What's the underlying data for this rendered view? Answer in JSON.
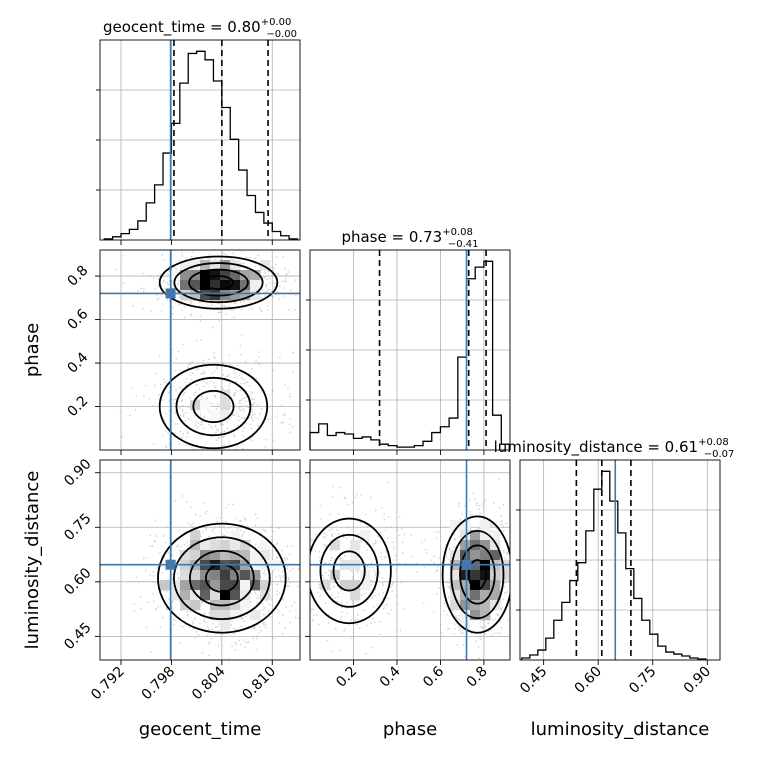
{
  "colors": {
    "truth": "#4477aa",
    "histogram": "#000000",
    "grid": "#b0b0b0"
  },
  "chart_data": {
    "type": "corner",
    "parameters": [
      {
        "name": "geocent_time",
        "xlabel": "geocent_time",
        "title_main": "geocent_time = 0.80",
        "title_plus": "+0.00",
        "title_minus": "−0.00",
        "range": [
          0.7895,
          0.8133
        ],
        "ticks": [
          0.792,
          0.798,
          0.804,
          0.81
        ],
        "tick_labels": [
          "0.792",
          "0.798",
          "0.804",
          "0.810"
        ],
        "quantiles": [
          0.7983,
          0.804,
          0.8095
        ],
        "truth": 0.7979,
        "hist": {
          "edges": [
            0.79,
            0.791,
            0.792,
            0.793,
            0.794,
            0.795,
            0.796,
            0.797,
            0.798,
            0.799,
            0.8,
            0.801,
            0.802,
            0.803,
            0.804,
            0.805,
            0.806,
            0.807,
            0.808,
            0.809,
            0.81,
            0.811,
            0.812,
            0.813
          ],
          "counts": [
            1,
            3,
            6,
            10,
            18,
            35,
            52,
            82,
            110,
            148,
            176,
            178,
            170,
            150,
            125,
            95,
            66,
            42,
            26,
            16,
            8,
            4,
            1
          ]
        }
      },
      {
        "name": "phase",
        "xlabel": "phase",
        "ylabel": "phase",
        "title_main": "phase = 0.73",
        "title_plus": "+0.08",
        "title_minus": "−0.41",
        "range": [
          0.0,
          0.92
        ],
        "ticks": [
          0.2,
          0.4,
          0.6,
          0.8
        ],
        "tick_labels": [
          "0.2",
          "0.4",
          "0.6",
          "0.8"
        ],
        "quantiles": [
          0.32,
          0.73,
          0.81
        ],
        "truth": 0.72,
        "hist": {
          "edges": [
            0.0,
            0.04,
            0.08,
            0.12,
            0.16,
            0.2,
            0.24,
            0.28,
            0.32,
            0.36,
            0.4,
            0.44,
            0.48,
            0.52,
            0.56,
            0.6,
            0.64,
            0.68,
            0.72,
            0.76,
            0.8,
            0.84,
            0.88,
            0.92
          ],
          "counts": [
            12,
            18,
            10,
            12,
            11,
            8,
            9,
            7,
            4,
            3,
            2,
            2,
            3,
            6,
            12,
            16,
            22,
            64,
            118,
            126,
            130,
            24,
            4
          ]
        }
      },
      {
        "name": "luminosity_distance",
        "xlabel": "luminosity_distance",
        "ylabel": "luminosity_distance",
        "title_main": "luminosity_distance = 0.61",
        "title_plus": "+0.08",
        "title_minus": "−0.07",
        "range": [
          0.385,
          0.935
        ],
        "ticks": [
          0.45,
          0.6,
          0.75,
          0.9
        ],
        "tick_labels": [
          "0.45",
          "0.60",
          "0.75",
          "0.90"
        ],
        "quantiles": [
          0.54,
          0.61,
          0.69
        ],
        "truth": 0.647,
        "hist": {
          "edges": [
            0.39,
            0.412,
            0.434,
            0.456,
            0.478,
            0.5,
            0.522,
            0.544,
            0.566,
            0.588,
            0.61,
            0.632,
            0.654,
            0.676,
            0.698,
            0.72,
            0.742,
            0.764,
            0.786,
            0.808,
            0.83,
            0.852,
            0.874,
            0.896
          ],
          "counts": [
            2,
            5,
            10,
            22,
            40,
            58,
            80,
            98,
            130,
            172,
            190,
            160,
            128,
            92,
            62,
            40,
            26,
            14,
            8,
            6,
            4,
            2,
            1
          ]
        }
      }
    ],
    "scatter_panels": [
      {
        "x": "geocent_time",
        "y": "phase",
        "truth": [
          0.7979,
          0.72
        ],
        "clusters": [
          {
            "cx": 0.8036,
            "cy": 0.77,
            "sx": 0.0035,
            "sy": 0.06,
            "n": 900
          },
          {
            "cx": 0.803,
            "cy": 0.2,
            "sx": 0.004,
            "sy": 0.12,
            "n": 500
          }
        ]
      },
      {
        "x": "geocent_time",
        "y": "luminosity_distance",
        "truth": [
          0.7979,
          0.647
        ],
        "clusters": [
          {
            "cx": 0.804,
            "cy": 0.61,
            "sx": 0.0038,
            "sy": 0.075,
            "n": 1300
          }
        ]
      },
      {
        "x": "phase",
        "y": "luminosity_distance",
        "truth": [
          0.72,
          0.647
        ],
        "clusters": [
          {
            "cx": 0.77,
            "cy": 0.62,
            "sx": 0.08,
            "sy": 0.08,
            "n": 900
          },
          {
            "cx": 0.18,
            "cy": 0.63,
            "sx": 0.12,
            "sy": 0.09,
            "n": 450
          }
        ]
      }
    ]
  }
}
